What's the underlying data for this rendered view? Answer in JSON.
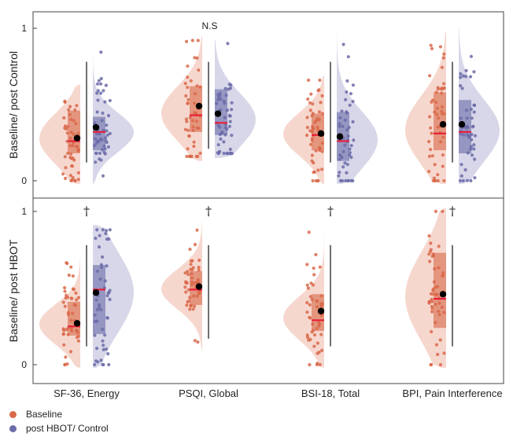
{
  "chart_data": {
    "type": "raincloud",
    "categories": [
      "SF-36, Energy",
      "PSQI, Global",
      "BSI-18, Total",
      "BPI, Pain Interference"
    ],
    "legend": [
      "Baseline",
      "post HBOT/ Control"
    ],
    "colors": {
      "baseline": "#d9694a",
      "post": "#6b6ba8",
      "baseline_fill": "#f3c9bd",
      "post_fill": "#c9c9e2",
      "median": "#e8203a",
      "frame": "#444444"
    },
    "panels": [
      {
        "ylabel": "Baseline/ post Control",
        "ylim": [
          0,
          1
        ],
        "yticks": [
          0,
          1
        ],
        "annotations": [
          {
            "text": "N.S",
            "category": 1.5
          }
        ],
        "groups": [
          {
            "baseline": {
              "q1": 0.18,
              "median": 0.26,
              "q3": 0.46,
              "mean": 0.28,
              "min": 0.0,
              "max": 0.6
            },
            "post": {
              "q1": 0.2,
              "median": 0.32,
              "q3": 0.42,
              "mean": 0.35,
              "min": 0.0,
              "max": 1.0
            }
          },
          {
            "baseline": {
              "q1": 0.32,
              "median": 0.43,
              "q3": 0.62,
              "mean": 0.49,
              "min": 0.16,
              "max": 0.92
            },
            "post": {
              "q1": 0.3,
              "median": 0.38,
              "q3": 0.6,
              "mean": 0.44,
              "min": 0.18,
              "max": 0.9
            }
          },
          {
            "baseline": {
              "q1": 0.2,
              "median": 0.3,
              "q3": 0.44,
              "mean": 0.31,
              "min": 0.0,
              "max": 0.66
            },
            "post": {
              "q1": 0.13,
              "median": 0.26,
              "q3": 0.45,
              "mean": 0.29,
              "min": 0.0,
              "max": 0.96
            }
          },
          {
            "baseline": {
              "q1": 0.2,
              "median": 0.31,
              "q3": 0.58,
              "mean": 0.37,
              "min": 0.0,
              "max": 0.95
            },
            "post": {
              "q1": 0.18,
              "median": 0.32,
              "q3": 0.53,
              "mean": 0.37,
              "min": 0.0,
              "max": 1.0
            }
          }
        ]
      },
      {
        "ylabel": "Baseline/ post HBOT",
        "ylim": [
          0,
          1
        ],
        "yticks": [
          0,
          1
        ],
        "annotations": [
          {
            "text": "†",
            "category": 0
          },
          {
            "text": "†",
            "category": 1
          },
          {
            "text": "†",
            "category": 2
          },
          {
            "text": "†",
            "category": 3
          }
        ],
        "groups": [
          {
            "baseline": {
              "q1": 0.19,
              "median": 0.25,
              "q3": 0.41,
              "mean": 0.27,
              "min": 0.0,
              "max": 0.67
            },
            "post": {
              "q1": 0.2,
              "median": 0.49,
              "q3": 0.65,
              "mean": 0.47,
              "min": 0.0,
              "max": 0.88
            }
          },
          {
            "baseline": {
              "q1": 0.39,
              "median": 0.49,
              "q3": 0.61,
              "mean": 0.51,
              "min": 0.12,
              "max": 0.9
            }
          },
          {
            "baseline": {
              "q1": 0.22,
              "median": 0.29,
              "q3": 0.46,
              "mean": 0.35,
              "min": 0.0,
              "max": 0.9
            }
          },
          {
            "baseline": {
              "q1": 0.24,
              "median": 0.43,
              "q3": 0.73,
              "mean": 0.46,
              "min": 0.0,
              "max": 1.0
            }
          }
        ]
      }
    ]
  }
}
